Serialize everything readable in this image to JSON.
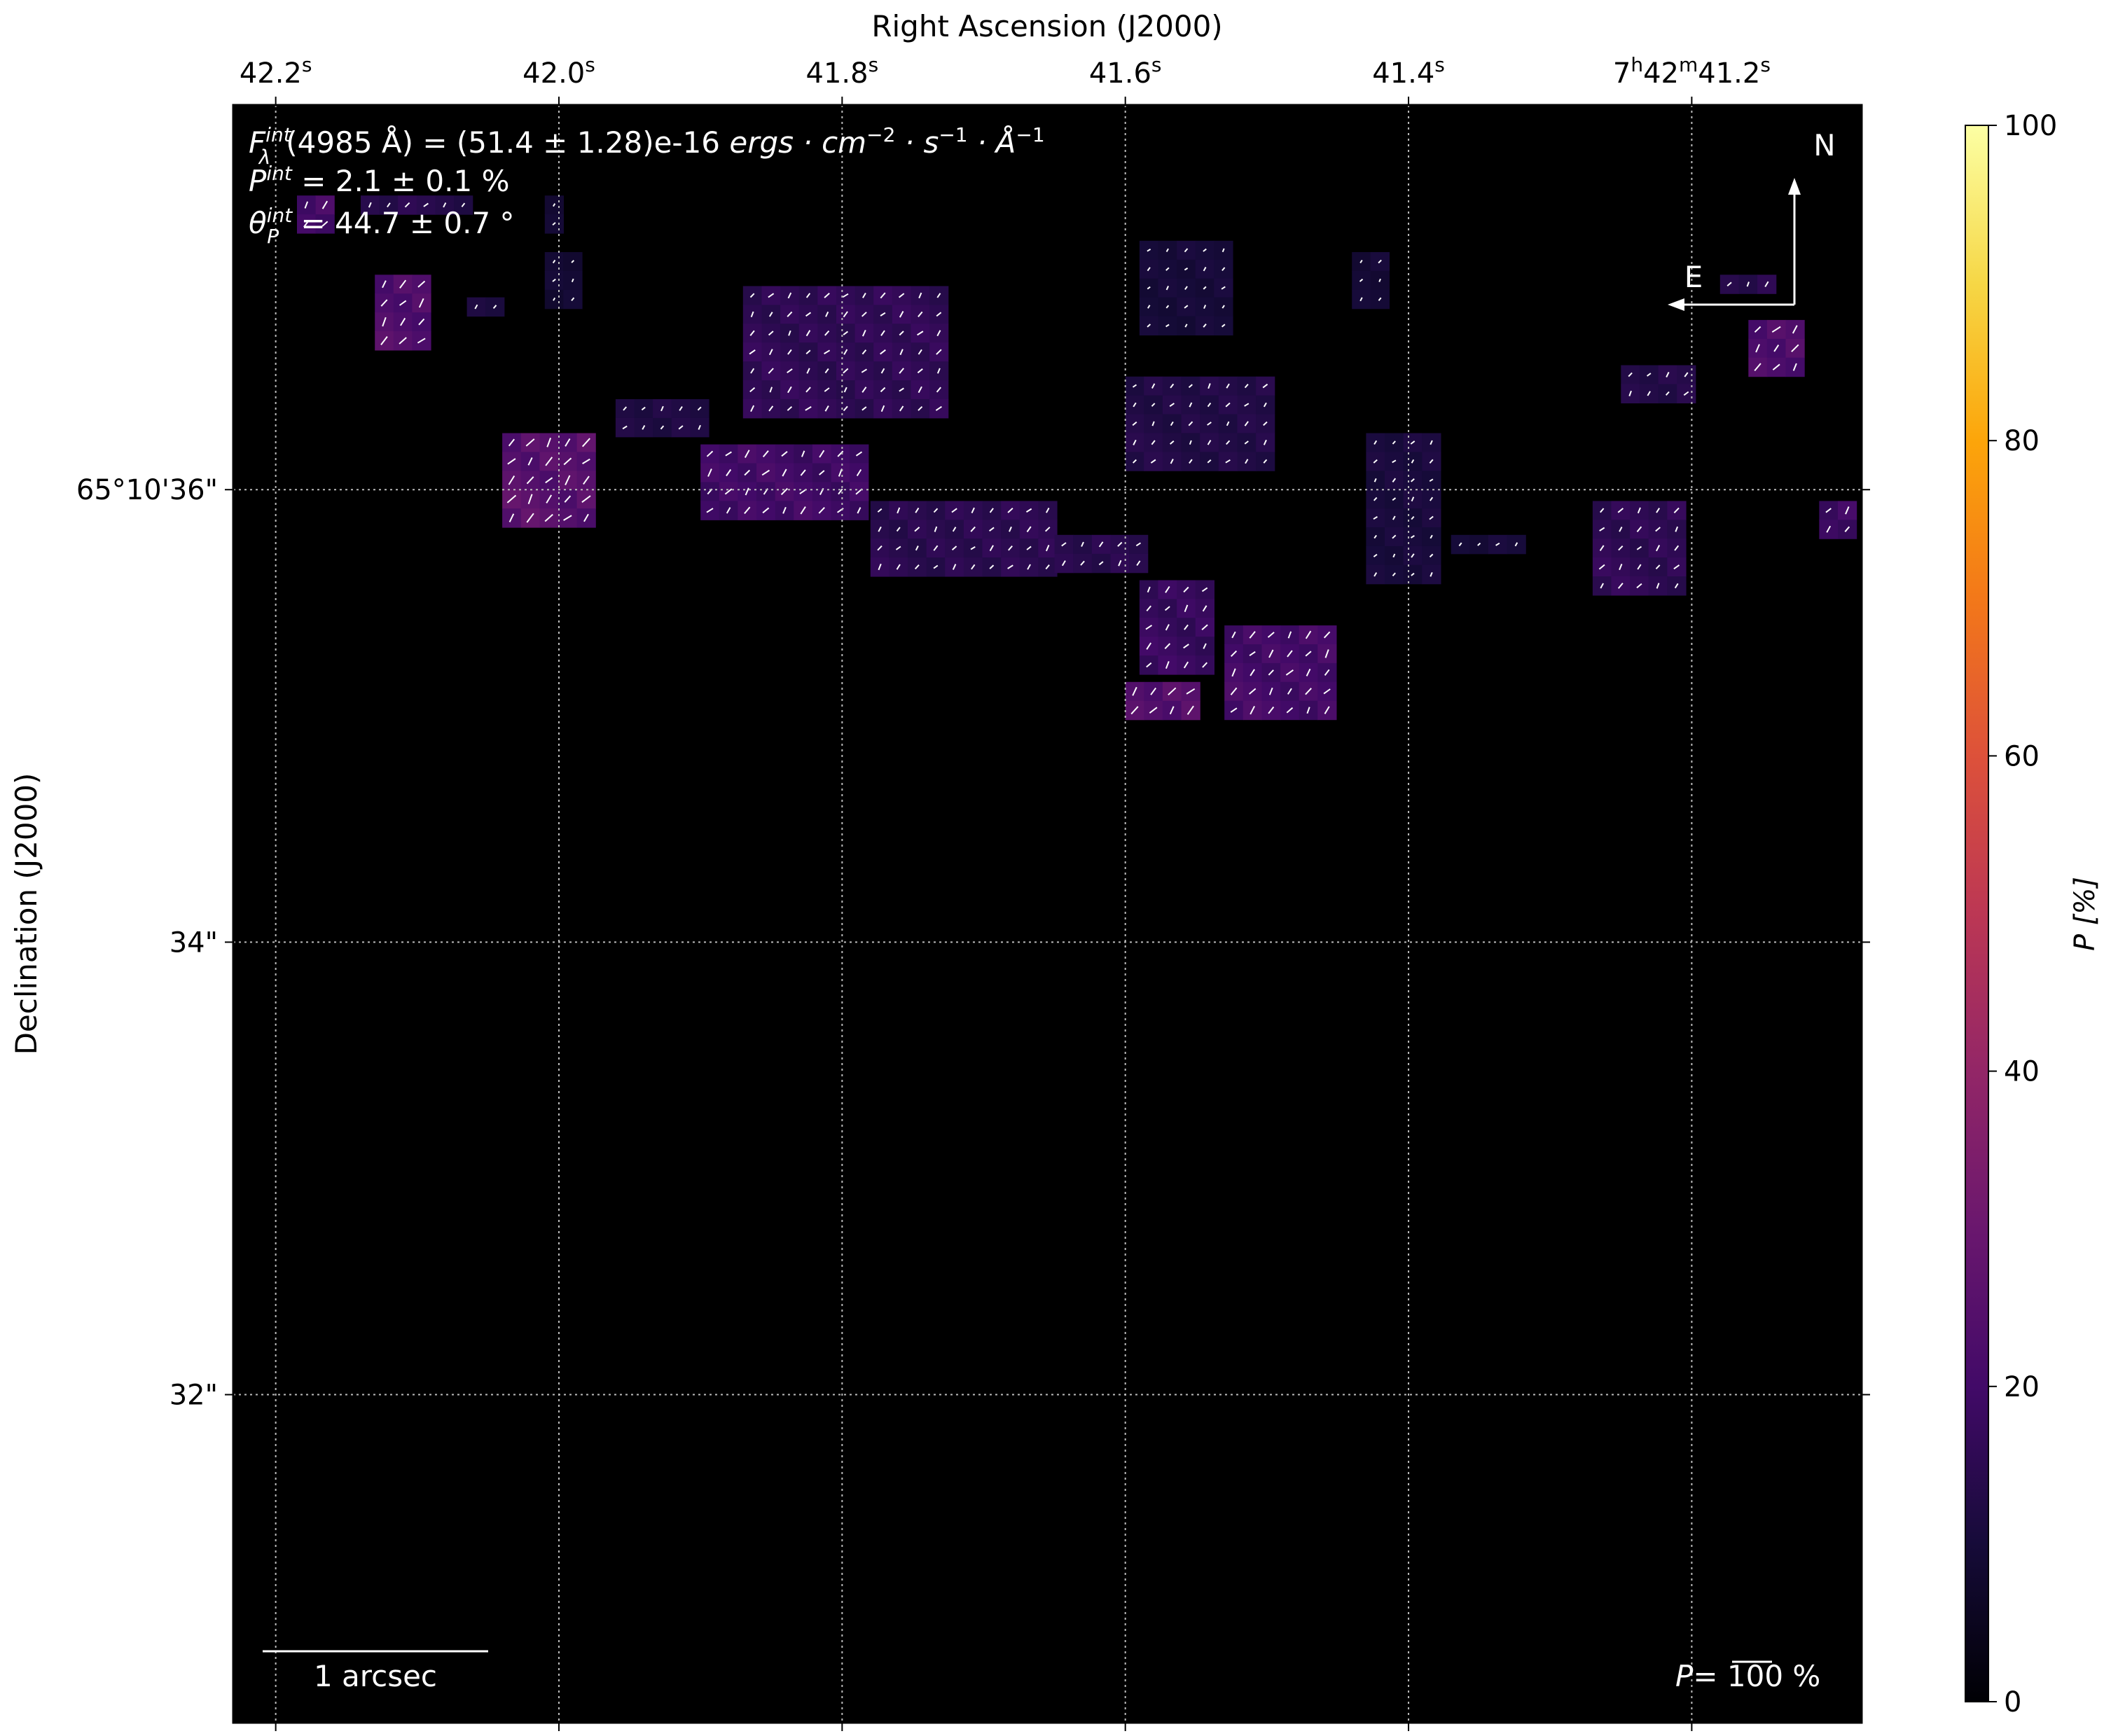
{
  "chart_data": {
    "type": "heatmap",
    "title": "",
    "xlabel": "Right Ascension (J2000)",
    "ylabel": "Declination (J2000)",
    "x_ticks": [
      {
        "label": "42.2",
        "sup": "s",
        "ra_s": 42.2
      },
      {
        "label": "42.0",
        "sup": "s",
        "ra_s": 42.0
      },
      {
        "label": "41.8",
        "sup": "s",
        "ra_s": 41.8
      },
      {
        "label": "41.6",
        "sup": "s",
        "ra_s": 41.6
      },
      {
        "label": "41.4",
        "sup": "s",
        "ra_s": 41.4
      },
      {
        "label": "7h42m41.2",
        "sup": "s",
        "ra_s": 41.2
      }
    ],
    "y_ticks": [
      {
        "label": "65°10'36\"",
        "dec_arcsec": 36
      },
      {
        "label": "34\"",
        "dec_arcsec": 34
      },
      {
        "label": "32\"",
        "dec_arcsec": 32
      }
    ],
    "x_range_ra_s": [
      42.23,
      41.08
    ],
    "y_range_dec_arcsec": [
      30.55,
      37.7
    ],
    "grid": true,
    "colorbar": {
      "label": "P [%]",
      "min": 0,
      "max": 100,
      "ticks": [
        0,
        20,
        40,
        60,
        80,
        100
      ],
      "colormap": "inferno"
    },
    "annotations": {
      "flux": "F_λ^int(4985 Å) = (51.4 ± 1.28)e-16 ergs · cm⁻² · s⁻¹ · Å⁻¹",
      "flux_parts": {
        "sym": "F",
        "sub": "λ",
        "sup": "int",
        "rest": "(4985 Å) = (51.4 ± 1.28)e-16 ",
        "units": "ergs · cm",
        "u1": "−2",
        "u2": " · s",
        "u3": "−1",
        "u4": " · Å",
        "u5": "−1"
      },
      "pol": "P^int = 2.1 ± 0.1 %",
      "pol_parts": {
        "sym": "P",
        "sup": "int",
        "rest": " = 2.1 ± 0.1 %"
      },
      "angle": "θ_P^int = 44.7 ± 0.7 °",
      "angle_parts": {
        "sym": "θ",
        "sub": "P",
        "sup": "int",
        "rest": " = 44.7 ± 0.7 °"
      },
      "north_label": "N",
      "east_label": "E",
      "scale_bar_label": "1 arcsec",
      "vector_scale_label_prefix": "P=",
      "vector_scale_label_value": " 100 %"
    },
    "polarization_map": {
      "description_units": "cells in RA seconds / Dec arcsec, value P [%]",
      "cell_ra_s": 0.01317,
      "cell_dec_arcsec": 0.0833,
      "regions": [
        {
          "ra": [
            42.185,
            42.16
          ],
          "dec": [
            37.15,
            37.3
          ],
          "p": 22
        },
        {
          "ra": [
            42.14,
            42.06
          ],
          "dec": [
            37.25,
            37.3
          ],
          "p": 14
        },
        {
          "ra": [
            42.13,
            42.09
          ],
          "dec": [
            36.6,
            36.95
          ],
          "p": 24
        },
        {
          "ra": [
            42.065,
            42.045
          ],
          "dec": [
            36.8,
            36.85
          ],
          "p": 12
        },
        {
          "ra": [
            42.01,
            42.0
          ],
          "dec": [
            37.15,
            37.3
          ],
          "p": 10
        },
        {
          "ra": [
            42.01,
            41.99
          ],
          "dec": [
            36.8,
            37.05
          ],
          "p": 9
        },
        {
          "ra": [
            42.04,
            41.97
          ],
          "dec": [
            35.8,
            36.25
          ],
          "p": 26
        },
        {
          "ra": [
            41.96,
            41.9
          ],
          "dec": [
            36.2,
            36.4
          ],
          "p": 12
        },
        {
          "ra": [
            41.87,
            41.72
          ],
          "dec": [
            36.3,
            36.9
          ],
          "p": 16
        },
        {
          "ra": [
            41.9,
            41.78
          ],
          "dec": [
            35.85,
            36.2
          ],
          "p": 20
        },
        {
          "ra": [
            41.78,
            41.65
          ],
          "dec": [
            35.6,
            35.95
          ],
          "p": 15
        },
        {
          "ra": [
            41.65,
            41.59
          ],
          "dec": [
            35.6,
            35.8
          ],
          "p": 14
        },
        {
          "ra": [
            41.6,
            41.5
          ],
          "dec": [
            36.1,
            36.5
          ],
          "p": 13
        },
        {
          "ra": [
            41.59,
            41.53
          ],
          "dec": [
            36.7,
            37.1
          ],
          "p": 10
        },
        {
          "ra": [
            41.59,
            41.54
          ],
          "dec": [
            35.2,
            35.6
          ],
          "p": 18
        },
        {
          "ra": [
            41.6,
            41.55
          ],
          "dec": [
            34.95,
            35.15
          ],
          "p": 24
        },
        {
          "ra": [
            41.53,
            41.45
          ],
          "dec": [
            35.0,
            35.4
          ],
          "p": 21
        },
        {
          "ra": [
            41.43,
            41.38
          ],
          "dec": [
            35.55,
            36.25
          ],
          "p": 11
        },
        {
          "ra": [
            41.44,
            41.41
          ],
          "dec": [
            36.8,
            37.05
          ],
          "p": 10
        },
        {
          "ra": [
            41.37,
            41.32
          ],
          "dec": [
            35.7,
            35.8
          ],
          "p": 10
        },
        {
          "ra": [
            41.27,
            41.2
          ],
          "dec": [
            35.5,
            35.95
          ],
          "p": 16
        },
        {
          "ra": [
            41.25,
            41.2
          ],
          "dec": [
            36.4,
            36.55
          ],
          "p": 13
        },
        {
          "ra": [
            41.16,
            41.12
          ],
          "dec": [
            36.5,
            36.75
          ],
          "p": 24
        },
        {
          "ra": [
            41.18,
            41.14
          ],
          "dec": [
            36.85,
            36.95
          ],
          "p": 14
        },
        {
          "ra": [
            41.11,
            41.09
          ],
          "dec": [
            35.8,
            35.95
          ],
          "p": 20
        }
      ]
    }
  }
}
